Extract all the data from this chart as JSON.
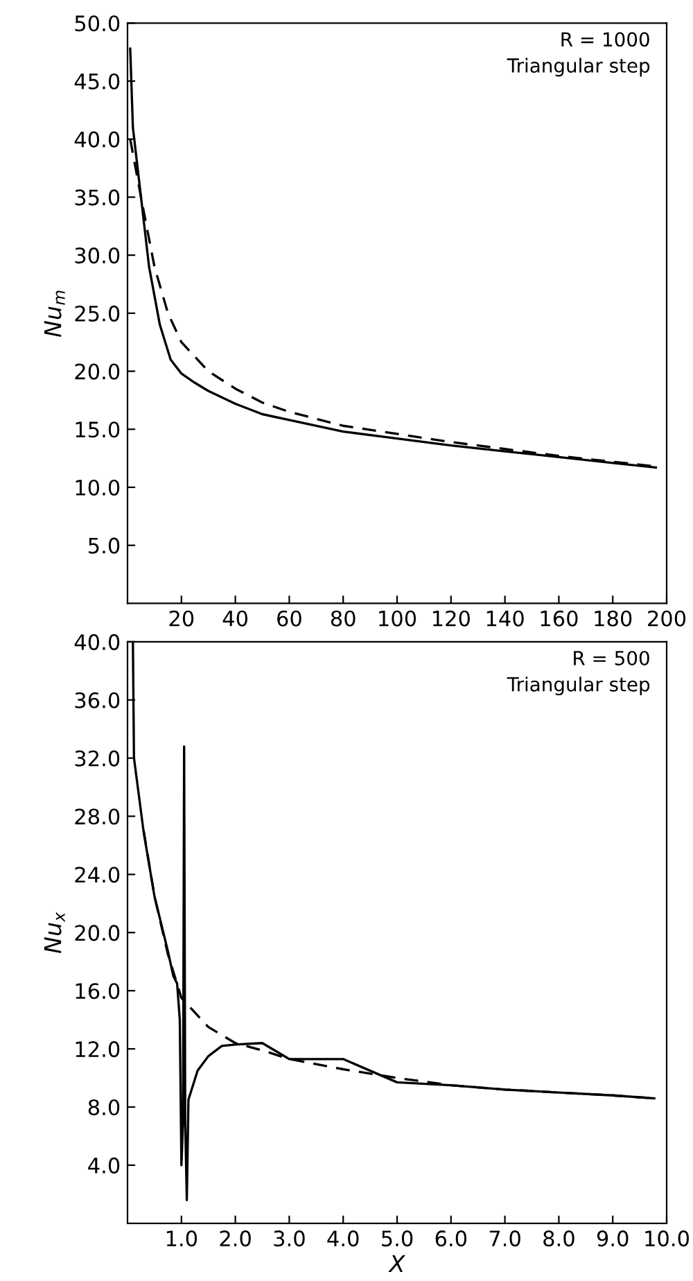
{
  "chart_data": [
    {
      "type": "line",
      "ylabel": "Nu$_{m}$",
      "annotations": [
        "R = 1000",
        "Triangular step"
      ],
      "xlim": [
        0,
        200
      ],
      "xticks": [
        20,
        40,
        60,
        80,
        100,
        120,
        140,
        160,
        180,
        200
      ],
      "ylim": [
        0,
        50
      ],
      "yticks": [
        {
          "value": 5,
          "label": "5.0"
        },
        {
          "value": 10,
          "label": "10.0"
        },
        {
          "value": 15,
          "label": "15.0"
        },
        {
          "value": 20,
          "label": "20.0"
        },
        {
          "value": 25,
          "label": "25.0"
        },
        {
          "value": 30,
          "label": "30.0"
        },
        {
          "value": 35,
          "label": "35.0"
        },
        {
          "value": 40,
          "label": "40.0"
        },
        {
          "value": 45,
          "label": "45.0"
        },
        {
          "value": 50,
          "label": "50.0"
        }
      ],
      "grid": false,
      "series": [
        {
          "color": "#000000",
          "line_style": "solid",
          "x": [
            1,
            2,
            5,
            8,
            12,
            16,
            20,
            25,
            30,
            40,
            50,
            60,
            80,
            100,
            120,
            140,
            160,
            180,
            196
          ],
          "values": [
            47.8,
            41,
            35,
            29,
            24,
            21,
            19.8,
            19,
            18.3,
            17.2,
            16.3,
            15.8,
            14.8,
            14.2,
            13.6,
            13.1,
            12.6,
            12.1,
            11.7
          ]
        },
        {
          "color": "#000000",
          "line_style": "dashed",
          "x": [
            1,
            5,
            10,
            15,
            20,
            30,
            40,
            50,
            60,
            80,
            100,
            120,
            140,
            160,
            180,
            196
          ],
          "values": [
            40,
            35,
            29,
            25,
            22.5,
            20,
            18.5,
            17.3,
            16.5,
            15.3,
            14.6,
            13.9,
            13.3,
            12.7,
            12.2,
            11.8
          ]
        }
      ]
    },
    {
      "type": "line",
      "xlabel": "X",
      "ylabel": "Nu$_{x}$",
      "annotations": [
        "R = 500",
        "Triangular step"
      ],
      "xlim": [
        0,
        10
      ],
      "xticks": [
        {
          "value": 1,
          "label": "1.0"
        },
        {
          "value": 2,
          "label": "2.0"
        },
        {
          "value": 3,
          "label": "3.0"
        },
        {
          "value": 4,
          "label": "4.0"
        },
        {
          "value": 5,
          "label": "5.0"
        },
        {
          "value": 6,
          "label": "6.0"
        },
        {
          "value": 7,
          "label": "7.0"
        },
        {
          "value": 8,
          "label": "8.0"
        },
        {
          "value": 9,
          "label": "9.0"
        },
        {
          "value": 10,
          "label": "10.0"
        }
      ],
      "ylim": [
        0,
        40
      ],
      "yticks": [
        {
          "value": 4,
          "label": "4.0"
        },
        {
          "value": 8,
          "label": "8.0"
        },
        {
          "value": 12,
          "label": "12.0"
        },
        {
          "value": 16,
          "label": "16.0"
        },
        {
          "value": 20,
          "label": "20.0"
        },
        {
          "value": 24,
          "label": "24.0"
        },
        {
          "value": 28,
          "label": "28.0"
        },
        {
          "value": 32,
          "label": "32.0"
        },
        {
          "value": 36,
          "label": "36.0"
        },
        {
          "value": 40,
          "label": "40.0"
        }
      ],
      "grid": false,
      "series": [
        {
          "color": "#000000",
          "line_style": "solid",
          "x": [
            0.1,
            0.12,
            0.3,
            0.5,
            0.75,
            0.85,
            0.92,
            0.97,
            1.0,
            1.03,
            1.05,
            1.07,
            1.1,
            1.13,
            1.3,
            1.5,
            1.75,
            2.0,
            2.5,
            3.0,
            4.0,
            5.0,
            6.0,
            7.0,
            8.0,
            9.0,
            9.77
          ],
          "values": [
            40,
            32,
            26.9,
            22.5,
            18.7,
            17,
            16.5,
            14,
            4.0,
            7.0,
            32.8,
            7.0,
            1.6,
            8.5,
            10.5,
            11.5,
            12.2,
            12.3,
            12.4,
            11.3,
            11.3,
            9.7,
            9.5,
            9.2,
            9.0,
            8.8,
            8.6
          ]
        },
        {
          "color": "#000000",
          "line_style": "dashed",
          "x": [
            0.3,
            0.5,
            0.75,
            1.0,
            1.5,
            2.0,
            2.5,
            3.0,
            4.0,
            5.0,
            6.0,
            7.0,
            8.0,
            9.0,
            9.77
          ],
          "values": [
            27,
            22.5,
            18.5,
            15.5,
            13.5,
            12.4,
            11.9,
            11.3,
            10.6,
            10.0,
            9.5,
            9.2,
            9.0,
            8.8,
            8.6
          ]
        }
      ]
    }
  ]
}
